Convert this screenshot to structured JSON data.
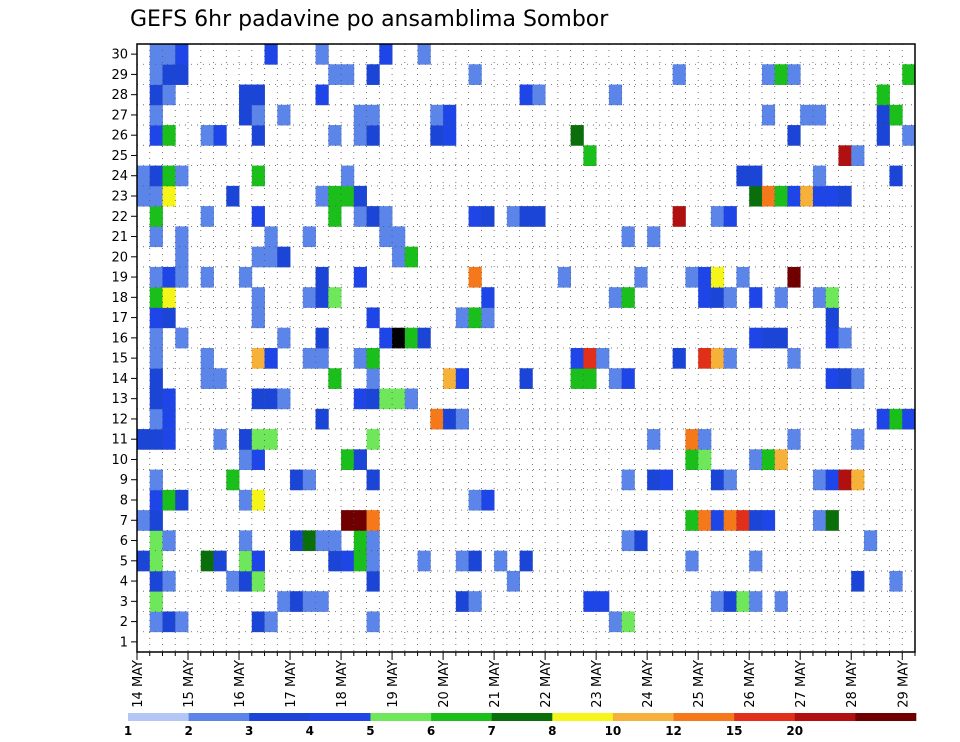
{
  "chart_data": {
    "type": "heatmap",
    "title": "GEFS 6hr padavine po ansamblima Sombor",
    "y_labels": [
      "1",
      "2",
      "3",
      "4",
      "5",
      "6",
      "7",
      "8",
      "9",
      "10",
      "11",
      "12",
      "13",
      "14",
      "15",
      "16",
      "17",
      "18",
      "19",
      "20",
      "21",
      "22",
      "23",
      "24",
      "25",
      "26",
      "27",
      "28",
      "29",
      "30"
    ],
    "x_labels": [
      "14 MAY",
      "15 MAY",
      "16 MAY",
      "17 MAY",
      "18 MAY",
      "19 MAY",
      "20 MAY",
      "21 MAY",
      "22 MAY",
      "23 MAY",
      "24 MAY",
      "25 MAY",
      "26 MAY",
      "27 MAY",
      "28 MAY",
      "29 MAY"
    ],
    "x_steps_per_label": 4,
    "n_steps": 61,
    "n_members": 30,
    "grid": true,
    "colorbar": {
      "levels": [
        "1",
        "2",
        "3",
        "4",
        "5",
        "6",
        "7",
        "8",
        "10",
        "12",
        "15",
        "20"
      ],
      "colors": [
        "#b3c6f5",
        "#5b85e8",
        "#1a45d6",
        "#1d45e8",
        "#6ee85a",
        "#1bbf1b",
        "#0a6e0a",
        "#f5f51a",
        "#f5b13a",
        "#f5781a",
        "#e0301a",
        "#b01010",
        "#700000"
      ]
    },
    "cells": [
      [
        1,
        1,
        1
      ],
      [
        1,
        2,
        2
      ],
      [
        1,
        3,
        1
      ],
      [
        1,
        9,
        2
      ],
      [
        1,
        10,
        1
      ],
      [
        1,
        18,
        1
      ],
      [
        1,
        37,
        1
      ],
      [
        1,
        38,
        4
      ],
      [
        2,
        1,
        4
      ],
      [
        2,
        11,
        1
      ],
      [
        2,
        12,
        2
      ],
      [
        2,
        13,
        1
      ],
      [
        2,
        14,
        1
      ],
      [
        2,
        25,
        2
      ],
      [
        2,
        26,
        1
      ],
      [
        2,
        35,
        3
      ],
      [
        2,
        36,
        3
      ],
      [
        2,
        45,
        1
      ],
      [
        2,
        46,
        2
      ],
      [
        2,
        47,
        4
      ],
      [
        2,
        48,
        1
      ],
      [
        2,
        50,
        1
      ],
      [
        3,
        1,
        2
      ],
      [
        3,
        2,
        1
      ],
      [
        3,
        7,
        1
      ],
      [
        3,
        8,
        2
      ],
      [
        3,
        9,
        4
      ],
      [
        3,
        18,
        2
      ],
      [
        3,
        29,
        1
      ],
      [
        3,
        56,
        2
      ],
      [
        3,
        59,
        1
      ],
      [
        4,
        0,
        2
      ],
      [
        4,
        1,
        4
      ],
      [
        4,
        5,
        6
      ],
      [
        4,
        6,
        2
      ],
      [
        4,
        8,
        4
      ],
      [
        4,
        9,
        3
      ],
      [
        4,
        15,
        2
      ],
      [
        4,
        16,
        3
      ],
      [
        4,
        17,
        5
      ],
      [
        4,
        18,
        1
      ],
      [
        4,
        22,
        1
      ],
      [
        4,
        25,
        1
      ],
      [
        4,
        26,
        2
      ],
      [
        4,
        28,
        1
      ],
      [
        4,
        30,
        2
      ],
      [
        4,
        43,
        1
      ],
      [
        4,
        48,
        1
      ],
      [
        5,
        1,
        4
      ],
      [
        5,
        2,
        1
      ],
      [
        5,
        8,
        1
      ],
      [
        5,
        12,
        2
      ],
      [
        5,
        13,
        6
      ],
      [
        5,
        14,
        1
      ],
      [
        5,
        15,
        1
      ],
      [
        5,
        17,
        5
      ],
      [
        5,
        18,
        1
      ],
      [
        5,
        38,
        1
      ],
      [
        5,
        39,
        2
      ],
      [
        5,
        57,
        1
      ],
      [
        6,
        0,
        1
      ],
      [
        6,
        1,
        2
      ],
      [
        6,
        16,
        12
      ],
      [
        6,
        17,
        12
      ],
      [
        6,
        18,
        9
      ],
      [
        6,
        43,
        5
      ],
      [
        6,
        44,
        9
      ],
      [
        6,
        45,
        3
      ],
      [
        6,
        46,
        9
      ],
      [
        6,
        47,
        10
      ],
      [
        6,
        48,
        2
      ],
      [
        6,
        49,
        3
      ],
      [
        6,
        53,
        1
      ],
      [
        6,
        54,
        6
      ],
      [
        7,
        1,
        3
      ],
      [
        7,
        2,
        5
      ],
      [
        7,
        3,
        2
      ],
      [
        7,
        8,
        1
      ],
      [
        7,
        9,
        7
      ],
      [
        7,
        26,
        1
      ],
      [
        7,
        27,
        3
      ],
      [
        8,
        1,
        1
      ],
      [
        8,
        7,
        5
      ],
      [
        8,
        12,
        2
      ],
      [
        8,
        13,
        1
      ],
      [
        8,
        18,
        2
      ],
      [
        8,
        38,
        1
      ],
      [
        8,
        40,
        2
      ],
      [
        8,
        41,
        3
      ],
      [
        8,
        45,
        2
      ],
      [
        8,
        46,
        1
      ],
      [
        8,
        53,
        1
      ],
      [
        8,
        54,
        3
      ],
      [
        8,
        55,
        11
      ],
      [
        8,
        56,
        8
      ],
      [
        9,
        8,
        1
      ],
      [
        9,
        9,
        3
      ],
      [
        9,
        16,
        5
      ],
      [
        9,
        17,
        2
      ],
      [
        9,
        43,
        5
      ],
      [
        9,
        44,
        4
      ],
      [
        9,
        48,
        1
      ],
      [
        9,
        49,
        5
      ],
      [
        9,
        50,
        8
      ],
      [
        10,
        0,
        2
      ],
      [
        10,
        1,
        2
      ],
      [
        10,
        2,
        3
      ],
      [
        10,
        6,
        1
      ],
      [
        10,
        8,
        2
      ],
      [
        10,
        9,
        4
      ],
      [
        10,
        10,
        4
      ],
      [
        10,
        18,
        4
      ],
      [
        10,
        40,
        1
      ],
      [
        10,
        43,
        9
      ],
      [
        10,
        44,
        1
      ],
      [
        10,
        51,
        1
      ],
      [
        10,
        56,
        1
      ],
      [
        11,
        1,
        1
      ],
      [
        11,
        2,
        3
      ],
      [
        11,
        14,
        2
      ],
      [
        11,
        23,
        9
      ],
      [
        11,
        24,
        2
      ],
      [
        11,
        25,
        1
      ],
      [
        11,
        58,
        3
      ],
      [
        11,
        59,
        5
      ],
      [
        11,
        60,
        3
      ],
      [
        12,
        1,
        2
      ],
      [
        12,
        2,
        3
      ],
      [
        12,
        9,
        2
      ],
      [
        12,
        10,
        2
      ],
      [
        12,
        11,
        1
      ],
      [
        12,
        17,
        3
      ],
      [
        12,
        18,
        2
      ],
      [
        12,
        19,
        4
      ],
      [
        12,
        20,
        4
      ],
      [
        12,
        21,
        1
      ],
      [
        13,
        1,
        2
      ],
      [
        13,
        5,
        1
      ],
      [
        13,
        6,
        1
      ],
      [
        13,
        15,
        5
      ],
      [
        13,
        18,
        1
      ],
      [
        13,
        24,
        8
      ],
      [
        13,
        25,
        3
      ],
      [
        13,
        30,
        2
      ],
      [
        13,
        34,
        5
      ],
      [
        13,
        35,
        5
      ],
      [
        13,
        37,
        1
      ],
      [
        13,
        38,
        3
      ],
      [
        13,
        54,
        3
      ],
      [
        13,
        55,
        2
      ],
      [
        13,
        56,
        1
      ],
      [
        14,
        1,
        1
      ],
      [
        14,
        5,
        1
      ],
      [
        14,
        9,
        8
      ],
      [
        14,
        10,
        3
      ],
      [
        14,
        13,
        1
      ],
      [
        14,
        14,
        1
      ],
      [
        14,
        17,
        1
      ],
      [
        14,
        18,
        5
      ],
      [
        14,
        34,
        3
      ],
      [
        14,
        35,
        10
      ],
      [
        14,
        36,
        1
      ],
      [
        14,
        42,
        2
      ],
      [
        14,
        44,
        10
      ],
      [
        14,
        45,
        8
      ],
      [
        14,
        46,
        1
      ],
      [
        14,
        51,
        1
      ],
      [
        15,
        1,
        1
      ],
      [
        15,
        3,
        1
      ],
      [
        15,
        11,
        1
      ],
      [
        15,
        14,
        2
      ],
      [
        15,
        19,
        3
      ],
      [
        15,
        20,
        13
      ],
      [
        15,
        21,
        5
      ],
      [
        15,
        22,
        2
      ],
      [
        15,
        48,
        3
      ],
      [
        15,
        49,
        2
      ],
      [
        15,
        50,
        2
      ],
      [
        15,
        54,
        3
      ],
      [
        15,
        55,
        1
      ],
      [
        16,
        1,
        3
      ],
      [
        16,
        2,
        2
      ],
      [
        16,
        9,
        1
      ],
      [
        16,
        18,
        3
      ],
      [
        16,
        25,
        1
      ],
      [
        16,
        26,
        5
      ],
      [
        16,
        27,
        1
      ],
      [
        16,
        54,
        2
      ],
      [
        17,
        1,
        5
      ],
      [
        17,
        2,
        7
      ],
      [
        17,
        9,
        1
      ],
      [
        17,
        13,
        1
      ],
      [
        17,
        14,
        2
      ],
      [
        17,
        15,
        4
      ],
      [
        17,
        27,
        3
      ],
      [
        17,
        37,
        1
      ],
      [
        17,
        38,
        5
      ],
      [
        17,
        44,
        3
      ],
      [
        17,
        45,
        2
      ],
      [
        17,
        46,
        1
      ],
      [
        17,
        48,
        3
      ],
      [
        17,
        50,
        1
      ],
      [
        17,
        53,
        1
      ],
      [
        17,
        54,
        4
      ],
      [
        18,
        1,
        1
      ],
      [
        18,
        2,
        3
      ],
      [
        18,
        3,
        1
      ],
      [
        18,
        5,
        1
      ],
      [
        18,
        8,
        1
      ],
      [
        18,
        14,
        2
      ],
      [
        18,
        17,
        3
      ],
      [
        18,
        26,
        9
      ],
      [
        18,
        33,
        1
      ],
      [
        18,
        39,
        1
      ],
      [
        18,
        43,
        1
      ],
      [
        18,
        44,
        3
      ],
      [
        18,
        45,
        7
      ],
      [
        18,
        47,
        1
      ],
      [
        18,
        51,
        12
      ],
      [
        19,
        3,
        1
      ],
      [
        19,
        9,
        1
      ],
      [
        19,
        10,
        1
      ],
      [
        19,
        11,
        2
      ],
      [
        19,
        20,
        1
      ],
      [
        19,
        21,
        5
      ],
      [
        20,
        1,
        1
      ],
      [
        20,
        3,
        1
      ],
      [
        20,
        10,
        1
      ],
      [
        20,
        13,
        1
      ],
      [
        20,
        19,
        1
      ],
      [
        20,
        20,
        1
      ],
      [
        20,
        38,
        1
      ],
      [
        20,
        40,
        1
      ],
      [
        21,
        1,
        5
      ],
      [
        21,
        5,
        1
      ],
      [
        21,
        9,
        3
      ],
      [
        21,
        15,
        5
      ],
      [
        21,
        17,
        1
      ],
      [
        21,
        18,
        2
      ],
      [
        21,
        19,
        1
      ],
      [
        21,
        26,
        3
      ],
      [
        21,
        27,
        2
      ],
      [
        21,
        29,
        1
      ],
      [
        21,
        30,
        2
      ],
      [
        21,
        31,
        2
      ],
      [
        21,
        42,
        11
      ],
      [
        21,
        45,
        1
      ],
      [
        21,
        46,
        3
      ],
      [
        22,
        0,
        1
      ],
      [
        22,
        1,
        1
      ],
      [
        22,
        2,
        7
      ],
      [
        22,
        7,
        2
      ],
      [
        22,
        14,
        1
      ],
      [
        22,
        15,
        5
      ],
      [
        22,
        16,
        5
      ],
      [
        22,
        17,
        2
      ],
      [
        22,
        48,
        6
      ],
      [
        22,
        49,
        9
      ],
      [
        22,
        50,
        5
      ],
      [
        22,
        51,
        3
      ],
      [
        22,
        52,
        8
      ],
      [
        22,
        53,
        3
      ],
      [
        22,
        54,
        3
      ],
      [
        22,
        55,
        2
      ],
      [
        23,
        0,
        1
      ],
      [
        23,
        1,
        2
      ],
      [
        23,
        2,
        5
      ],
      [
        23,
        3,
        1
      ],
      [
        23,
        9,
        5
      ],
      [
        23,
        16,
        1
      ],
      [
        23,
        47,
        2
      ],
      [
        23,
        48,
        2
      ],
      [
        23,
        53,
        1
      ],
      [
        23,
        59,
        2
      ],
      [
        24,
        35,
        5
      ],
      [
        24,
        55,
        11
      ],
      [
        24,
        56,
        1
      ],
      [
        25,
        1,
        3
      ],
      [
        25,
        2,
        5
      ],
      [
        25,
        5,
        1
      ],
      [
        25,
        6,
        3
      ],
      [
        25,
        9,
        2
      ],
      [
        25,
        15,
        1
      ],
      [
        25,
        17,
        1
      ],
      [
        25,
        18,
        2
      ],
      [
        25,
        23,
        2
      ],
      [
        25,
        24,
        3
      ],
      [
        25,
        34,
        6
      ],
      [
        25,
        51,
        2
      ],
      [
        25,
        58,
        2
      ],
      [
        25,
        60,
        1
      ],
      [
        26,
        1,
        1
      ],
      [
        26,
        8,
        2
      ],
      [
        26,
        9,
        1
      ],
      [
        26,
        11,
        1
      ],
      [
        26,
        17,
        1
      ],
      [
        26,
        18,
        1
      ],
      [
        26,
        23,
        1
      ],
      [
        26,
        24,
        3
      ],
      [
        26,
        49,
        1
      ],
      [
        26,
        52,
        1
      ],
      [
        26,
        53,
        1
      ],
      [
        26,
        58,
        2
      ],
      [
        26,
        59,
        5
      ],
      [
        27,
        1,
        2
      ],
      [
        27,
        2,
        1
      ],
      [
        27,
        8,
        2
      ],
      [
        27,
        9,
        2
      ],
      [
        27,
        14,
        3
      ],
      [
        27,
        30,
        3
      ],
      [
        27,
        31,
        1
      ],
      [
        27,
        37,
        1
      ],
      [
        27,
        58,
        5
      ],
      [
        28,
        1,
        1
      ],
      [
        28,
        2,
        2
      ],
      [
        28,
        3,
        2
      ],
      [
        28,
        15,
        1
      ],
      [
        28,
        16,
        1
      ],
      [
        28,
        18,
        2
      ],
      [
        28,
        26,
        1
      ],
      [
        28,
        42,
        1
      ],
      [
        28,
        49,
        1
      ],
      [
        28,
        50,
        5
      ],
      [
        28,
        51,
        1
      ],
      [
        28,
        60,
        5
      ],
      [
        29,
        1,
        1
      ],
      [
        29,
        2,
        1
      ],
      [
        29,
        3,
        3
      ],
      [
        29,
        10,
        3
      ],
      [
        29,
        14,
        1
      ],
      [
        29,
        19,
        3
      ],
      [
        29,
        22,
        1
      ]
    ]
  }
}
